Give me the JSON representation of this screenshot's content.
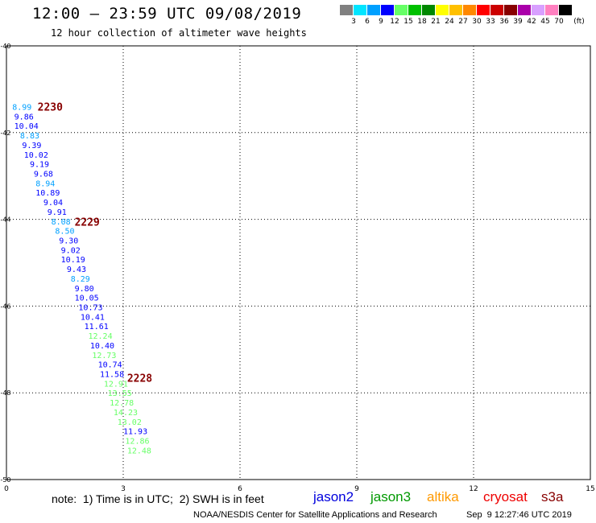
{
  "header": {
    "title": "12:00 – 23:59 UTC 09/08/2019",
    "subtitle": "12 hour collection of altimeter wave heights"
  },
  "colorbar": {
    "levels": [
      "3",
      "6",
      "9",
      "12",
      "15",
      "18",
      "21",
      "24",
      "27",
      "30",
      "33",
      "36",
      "39",
      "42",
      "45",
      "70"
    ],
    "unit": "(ft)",
    "colors": [
      "#808080",
      "#00e5ff",
      "#00a0ff",
      "#0000ff",
      "#66ff66",
      "#00c000",
      "#008800",
      "#ffff00",
      "#ffc000",
      "#ff8800",
      "#ff0000",
      "#cc0000",
      "#880000",
      "#aa00aa",
      "#d8a0ff",
      "#ff80c0",
      "#000000"
    ]
  },
  "footer": {
    "note": "note:  1) Time is in UTC;  2) SWH is in feet",
    "credit": "NOAA/NESDIS Center for Satellite Applications and Research",
    "timestamp": "Sep  9 12:27:46 UTC 2019",
    "missions": [
      {
        "name": "jason2",
        "color": "#0000dd"
      },
      {
        "name": "jason3",
        "color": "#009900"
      },
      {
        "name": "altika",
        "color": "#ff9900"
      },
      {
        "name": "cryosat",
        "color": "#ee0000"
      },
      {
        "name": "s3a",
        "color": "#880000"
      }
    ]
  },
  "chart_data": {
    "type": "scatter",
    "title": "12:00 – 23:59 UTC 09/08/2019",
    "subtitle": "12 hour collection of altimeter wave heights",
    "xlabel": "",
    "ylabel": "",
    "xlim": [
      0,
      15
    ],
    "ylim": [
      -50,
      -40
    ],
    "xticks": [
      "0",
      "3",
      "6",
      "9",
      "12",
      "15"
    ],
    "yticks": [
      "-40",
      "-42",
      "-44",
      "-46",
      "-48",
      "-50"
    ],
    "grid": true,
    "legend": "bottom",
    "time_labels": [
      {
        "text": "2230",
        "x": 0.8,
        "y": -41.4,
        "color": "#880000"
      },
      {
        "text": "2229",
        "x": 1.75,
        "y": -44.05,
        "color": "#880000"
      },
      {
        "text": "2228",
        "x": 3.1,
        "y": -47.65,
        "color": "#880000"
      }
    ],
    "points": [
      {
        "x": 0.15,
        "y": -41.4,
        "value": "8.99",
        "color": "#00a0ff"
      },
      {
        "x": 0.2,
        "y": -41.62,
        "value": "9.86",
        "color": "#0000ff"
      },
      {
        "x": 0.2,
        "y": -41.84,
        "value": "10.04",
        "color": "#0000ff"
      },
      {
        "x": 0.35,
        "y": -42.06,
        "value": "8.83",
        "color": "#00a0ff"
      },
      {
        "x": 0.4,
        "y": -42.28,
        "value": "9.39",
        "color": "#0000ff"
      },
      {
        "x": 0.45,
        "y": -42.5,
        "value": "10.02",
        "color": "#0000ff"
      },
      {
        "x": 0.6,
        "y": -42.72,
        "value": "9.19",
        "color": "#0000ff"
      },
      {
        "x": 0.7,
        "y": -42.94,
        "value": "9.68",
        "color": "#0000ff"
      },
      {
        "x": 0.75,
        "y": -43.16,
        "value": "8.94",
        "color": "#00a0ff"
      },
      {
        "x": 0.75,
        "y": -43.38,
        "value": "10.89",
        "color": "#0000ff"
      },
      {
        "x": 0.95,
        "y": -43.6,
        "value": "9.04",
        "color": "#0000ff"
      },
      {
        "x": 1.05,
        "y": -43.82,
        "value": "9.91",
        "color": "#0000ff"
      },
      {
        "x": 1.15,
        "y": -44.04,
        "value": "8.08",
        "color": "#00a0ff"
      },
      {
        "x": 1.25,
        "y": -44.26,
        "value": "8.50",
        "color": "#00a0ff"
      },
      {
        "x": 1.35,
        "y": -44.48,
        "value": "9.30",
        "color": "#0000ff"
      },
      {
        "x": 1.4,
        "y": -44.7,
        "value": "9.02",
        "color": "#0000ff"
      },
      {
        "x": 1.4,
        "y": -44.92,
        "value": "10.19",
        "color": "#0000ff"
      },
      {
        "x": 1.55,
        "y": -45.14,
        "value": "9.43",
        "color": "#0000ff"
      },
      {
        "x": 1.65,
        "y": -45.36,
        "value": "8.29",
        "color": "#00a0ff"
      },
      {
        "x": 1.75,
        "y": -45.58,
        "value": "9.80",
        "color": "#0000ff"
      },
      {
        "x": 1.75,
        "y": -45.8,
        "value": "10.05",
        "color": "#0000ff"
      },
      {
        "x": 1.85,
        "y": -46.02,
        "value": "10.73",
        "color": "#0000ff"
      },
      {
        "x": 1.9,
        "y": -46.24,
        "value": "10.41",
        "color": "#0000ff"
      },
      {
        "x": 2.0,
        "y": -46.46,
        "value": "11.61",
        "color": "#0000ff"
      },
      {
        "x": 2.1,
        "y": -46.68,
        "value": "12.24",
        "color": "#66ff66"
      },
      {
        "x": 2.15,
        "y": -46.9,
        "value": "10.40",
        "color": "#0000ff"
      },
      {
        "x": 2.2,
        "y": -47.12,
        "value": "12.73",
        "color": "#66ff66"
      },
      {
        "x": 2.35,
        "y": -47.34,
        "value": "10.74",
        "color": "#0000ff"
      },
      {
        "x": 2.4,
        "y": -47.56,
        "value": "11.58",
        "color": "#0000ff"
      },
      {
        "x": 2.5,
        "y": -47.78,
        "value": "12.91",
        "color": "#66ff66"
      },
      {
        "x": 2.6,
        "y": -48.0,
        "value": "13.55",
        "color": "#66ff66"
      },
      {
        "x": 2.65,
        "y": -48.22,
        "value": "12.78",
        "color": "#66ff66"
      },
      {
        "x": 2.75,
        "y": -48.44,
        "value": "14.23",
        "color": "#66ff66"
      },
      {
        "x": 2.85,
        "y": -48.66,
        "value": "13.02",
        "color": "#66ff66"
      },
      {
        "x": 3.0,
        "y": -48.88,
        "value": "11.93",
        "color": "#0000ff"
      },
      {
        "x": 3.05,
        "y": -49.1,
        "value": "12.86",
        "color": "#66ff66"
      },
      {
        "x": 3.1,
        "y": -49.32,
        "value": "12.48",
        "color": "#66ff66"
      }
    ]
  }
}
